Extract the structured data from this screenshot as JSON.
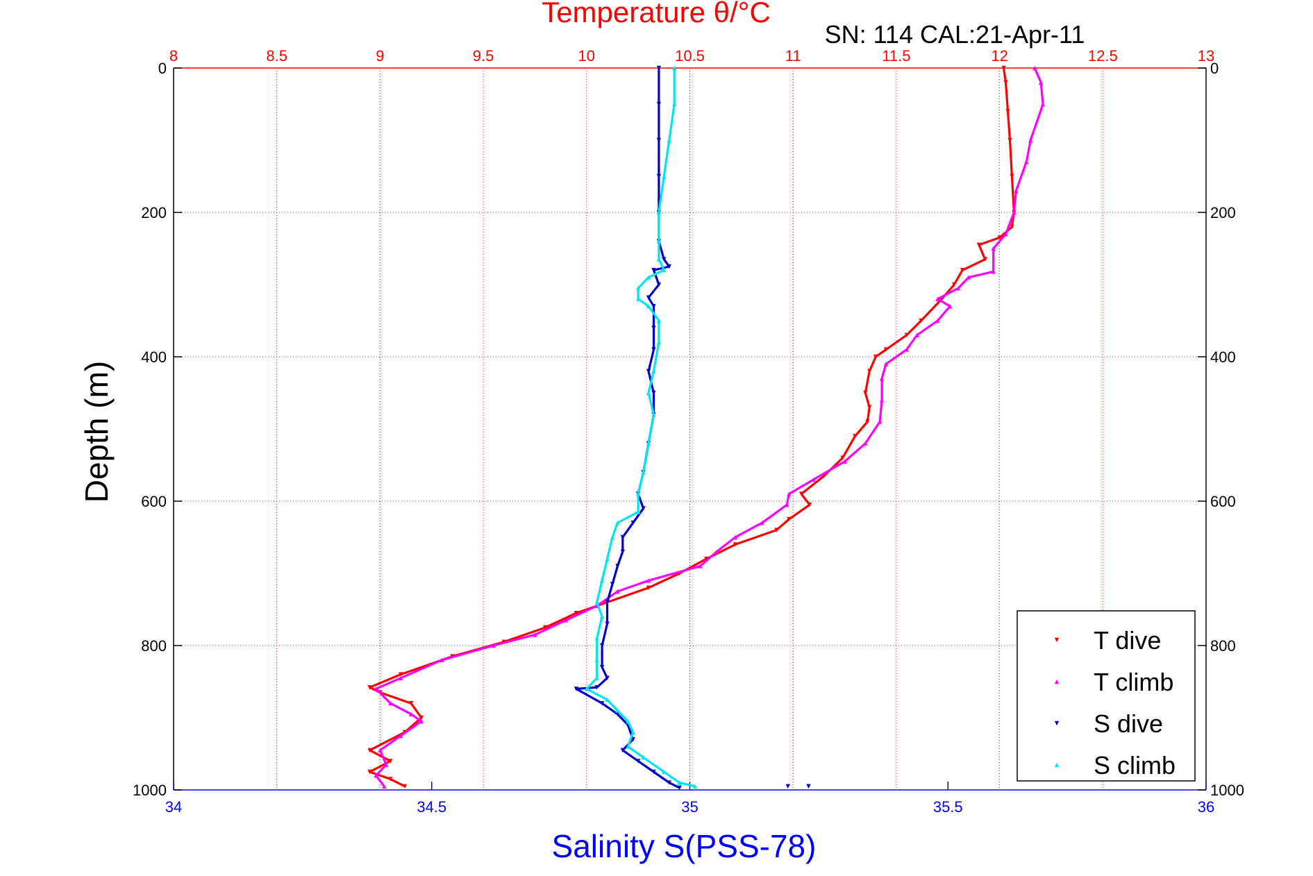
{
  "chart_data": {
    "type": "scatter",
    "title": "Temperature θ/°C",
    "subtitle": "SN: 114  CAL:21-Apr-11",
    "ylabel": "Depth (m)",
    "xlabel_bottom": "Salinity S(PSS-78)",
    "xlabel_top": "Temperature θ/°C",
    "ylim": [
      1000,
      0
    ],
    "xlim_bottom": [
      34,
      36
    ],
    "xlim_top": [
      8,
      13
    ],
    "grid": true,
    "legend_position": "bottom-right",
    "y_ticks": [
      "0",
      "200",
      "400",
      "600",
      "800",
      "1000"
    ],
    "y_tick_values": [
      0,
      200,
      400,
      600,
      800,
      1000
    ],
    "x_bottom_ticks": [
      "34",
      "34.5",
      "35",
      "35.5",
      "36"
    ],
    "x_bottom_tick_values": [
      34,
      34.5,
      35,
      35.5,
      36
    ],
    "x_top_ticks": [
      "8",
      "8.5",
      "9",
      "9.5",
      "10",
      "10.5",
      "11",
      "11.5",
      "12",
      "12.5",
      "13"
    ],
    "x_top_tick_values": [
      8,
      8.5,
      9,
      9.5,
      10,
      10.5,
      11,
      11.5,
      12,
      12.5,
      13
    ],
    "colors": {
      "temperature_axis": "#ff0000",
      "salinity_axis": "#0000ff",
      "t_dive": "#ff0000",
      "t_climb": "#ff00ff",
      "s_dive": "#0000cc",
      "s_climb": "#00e5ee"
    },
    "series": [
      {
        "name": "T dive",
        "axis": "temperature",
        "color": "#ff0000",
        "marker": "triangle-down",
        "points": [
          [
            12.02,
            0
          ],
          [
            12.03,
            20
          ],
          [
            12.04,
            60
          ],
          [
            12.05,
            100
          ],
          [
            12.06,
            150
          ],
          [
            12.07,
            200
          ],
          [
            12.06,
            220
          ],
          [
            12.0,
            235
          ],
          [
            11.9,
            245
          ],
          [
            11.93,
            265
          ],
          [
            11.82,
            280
          ],
          [
            11.78,
            300
          ],
          [
            11.72,
            320
          ],
          [
            11.62,
            350
          ],
          [
            11.55,
            370
          ],
          [
            11.45,
            390
          ],
          [
            11.4,
            400
          ],
          [
            11.37,
            420
          ],
          [
            11.35,
            450
          ],
          [
            11.37,
            470
          ],
          [
            11.36,
            490
          ],
          [
            11.3,
            510
          ],
          [
            11.24,
            540
          ],
          [
            11.15,
            565
          ],
          [
            11.04,
            590
          ],
          [
            11.08,
            605
          ],
          [
            10.98,
            625
          ],
          [
            10.92,
            640
          ],
          [
            10.72,
            660
          ],
          [
            10.58,
            680
          ],
          [
            10.45,
            700
          ],
          [
            10.3,
            720
          ],
          [
            10.1,
            740
          ],
          [
            9.95,
            755
          ],
          [
            9.8,
            775
          ],
          [
            9.6,
            795
          ],
          [
            9.35,
            815
          ],
          [
            9.1,
            840
          ],
          [
            8.95,
            858
          ],
          [
            9.0,
            865
          ],
          [
            9.15,
            880
          ],
          [
            9.2,
            900
          ],
          [
            9.12,
            920
          ],
          [
            8.95,
            945
          ],
          [
            9.05,
            960
          ],
          [
            8.95,
            975
          ],
          [
            9.05,
            985
          ],
          [
            9.12,
            995
          ]
        ]
      },
      {
        "name": "T climb",
        "axis": "temperature",
        "color": "#ff00ff",
        "marker": "triangle-up",
        "points": [
          [
            12.17,
            0
          ],
          [
            12.2,
            20
          ],
          [
            12.21,
            50
          ],
          [
            12.15,
            100
          ],
          [
            12.13,
            130
          ],
          [
            12.08,
            170
          ],
          [
            12.07,
            200
          ],
          [
            12.03,
            230
          ],
          [
            11.97,
            250
          ],
          [
            11.97,
            282
          ],
          [
            11.85,
            290
          ],
          [
            11.8,
            305
          ],
          [
            11.7,
            320
          ],
          [
            11.76,
            330
          ],
          [
            11.7,
            350
          ],
          [
            11.6,
            370
          ],
          [
            11.55,
            390
          ],
          [
            11.45,
            410
          ],
          [
            11.43,
            430
          ],
          [
            11.43,
            460
          ],
          [
            11.42,
            490
          ],
          [
            11.35,
            520
          ],
          [
            11.25,
            545
          ],
          [
            11.1,
            570
          ],
          [
            10.98,
            590
          ],
          [
            10.97,
            605
          ],
          [
            10.85,
            630
          ],
          [
            10.72,
            650
          ],
          [
            10.63,
            670
          ],
          [
            10.55,
            690
          ],
          [
            10.3,
            710
          ],
          [
            10.15,
            725
          ],
          [
            10.05,
            745
          ],
          [
            9.9,
            765
          ],
          [
            9.75,
            785
          ],
          [
            9.55,
            800
          ],
          [
            9.3,
            820
          ],
          [
            9.1,
            845
          ],
          [
            8.98,
            860
          ],
          [
            9.05,
            880
          ],
          [
            9.15,
            895
          ],
          [
            9.2,
            905
          ],
          [
            9.1,
            925
          ],
          [
            9.0,
            945
          ],
          [
            9.03,
            965
          ],
          [
            8.98,
            980
          ],
          [
            9.02,
            995
          ]
        ]
      },
      {
        "name": "S dive",
        "axis": "salinity",
        "color": "#0000cc",
        "marker": "triangle-down",
        "points": [
          [
            34.94,
            0
          ],
          [
            34.94,
            50
          ],
          [
            34.94,
            100
          ],
          [
            34.94,
            150
          ],
          [
            34.94,
            200
          ],
          [
            34.94,
            240
          ],
          [
            34.95,
            265
          ],
          [
            34.96,
            275
          ],
          [
            34.93,
            280
          ],
          [
            34.94,
            300
          ],
          [
            34.92,
            318
          ],
          [
            34.93,
            330
          ],
          [
            34.93,
            360
          ],
          [
            34.93,
            390
          ],
          [
            34.92,
            420
          ],
          [
            34.93,
            450
          ],
          [
            34.93,
            480
          ],
          [
            34.92,
            520
          ],
          [
            34.91,
            560
          ],
          [
            34.9,
            590
          ],
          [
            34.91,
            610
          ],
          [
            34.89,
            630
          ],
          [
            34.87,
            650
          ],
          [
            34.87,
            670
          ],
          [
            34.86,
            690
          ],
          [
            34.85,
            715
          ],
          [
            34.84,
            740
          ],
          [
            34.84,
            770
          ],
          [
            34.83,
            800
          ],
          [
            34.83,
            830
          ],
          [
            34.84,
            845
          ],
          [
            34.82,
            858
          ],
          [
            34.78,
            860
          ],
          [
            34.83,
            880
          ],
          [
            34.86,
            895
          ],
          [
            34.88,
            910
          ],
          [
            34.89,
            930
          ],
          [
            34.87,
            945
          ],
          [
            34.9,
            960
          ],
          [
            34.93,
            975
          ],
          [
            34.96,
            990
          ],
          [
            34.98,
            997
          ],
          [
            35.19,
            995
          ],
          [
            35.23,
            995
          ]
        ]
      },
      {
        "name": "S climb",
        "axis": "salinity",
        "color": "#00e5ee",
        "marker": "triangle-up",
        "points": [
          [
            34.97,
            0
          ],
          [
            34.97,
            50
          ],
          [
            34.96,
            100
          ],
          [
            34.95,
            150
          ],
          [
            34.94,
            200
          ],
          [
            34.94,
            240
          ],
          [
            34.94,
            265
          ],
          [
            34.95,
            280
          ],
          [
            34.92,
            290
          ],
          [
            34.9,
            305
          ],
          [
            34.9,
            320
          ],
          [
            34.92,
            330
          ],
          [
            34.94,
            350
          ],
          [
            34.94,
            380
          ],
          [
            34.93,
            420
          ],
          [
            34.92,
            450
          ],
          [
            34.93,
            480
          ],
          [
            34.92,
            520
          ],
          [
            34.91,
            560
          ],
          [
            34.9,
            590
          ],
          [
            34.9,
            615
          ],
          [
            34.86,
            630
          ],
          [
            34.85,
            650
          ],
          [
            34.84,
            680
          ],
          [
            34.83,
            710
          ],
          [
            34.82,
            740
          ],
          [
            34.83,
            760
          ],
          [
            34.82,
            790
          ],
          [
            34.82,
            820
          ],
          [
            34.82,
            845
          ],
          [
            34.8,
            860
          ],
          [
            34.84,
            875
          ],
          [
            34.86,
            890
          ],
          [
            34.88,
            905
          ],
          [
            34.89,
            920
          ],
          [
            34.88,
            940
          ],
          [
            34.91,
            955
          ],
          [
            34.95,
            975
          ],
          [
            34.98,
            990
          ],
          [
            35.01,
            995
          ]
        ]
      }
    ]
  }
}
